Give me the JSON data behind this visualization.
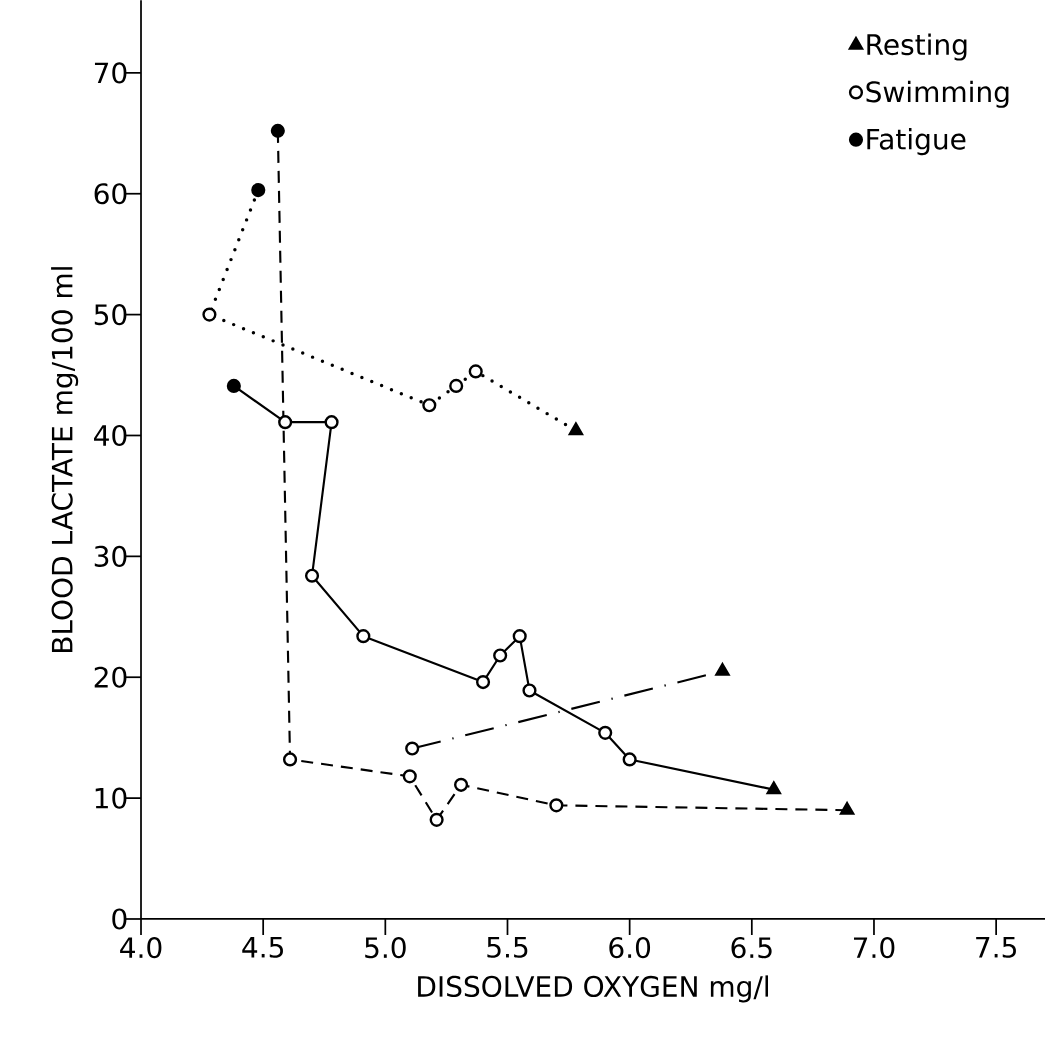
{
  "chart_data": {
    "type": "line",
    "xlabel": "DISSOLVED  OXYGEN   mg/l",
    "ylabel": "BLOOD  LACTATE   mg/100 ml",
    "xlim": [
      4.0,
      7.7
    ],
    "ylim": [
      0,
      76
    ],
    "xticks": [
      {
        "value": 4.0,
        "label": "4.0"
      },
      {
        "value": 4.5,
        "label": "4.5"
      },
      {
        "value": 5.0,
        "label": "5.0"
      },
      {
        "value": 5.5,
        "label": "5.5"
      },
      {
        "value": 6.0,
        "label": "6.0"
      },
      {
        "value": 6.5,
        "label": "6.5"
      },
      {
        "value": 7.0,
        "label": "7.0"
      },
      {
        "value": 7.5,
        "label": "7.5"
      }
    ],
    "yticks": [
      0,
      10,
      20,
      30,
      40,
      50,
      60,
      70
    ],
    "grid": false,
    "legend": "top right",
    "series": [
      {
        "line_style": "dotted",
        "marker": "none",
        "color": "#000000",
        "x": [
          4.48,
          4.28,
          5.18,
          5.29,
          5.37,
          5.78
        ],
        "values": [
          60.3,
          50.0,
          42.5,
          44.1,
          45.3,
          40.4
        ]
      },
      {
        "line_style": "solid",
        "marker": "none",
        "color": "#000000",
        "x": [
          4.38,
          4.59,
          4.78,
          4.7,
          4.91,
          5.4,
          5.47,
          5.55,
          5.59,
          5.9,
          6.0,
          6.59
        ],
        "values": [
          44.1,
          41.1,
          41.1,
          28.4,
          23.4,
          19.6,
          21.8,
          23.4,
          18.9,
          15.4,
          13.2,
          10.7
        ]
      },
      {
        "line_style": "dashdot",
        "marker": "none",
        "color": "#000000",
        "x": [
          5.11,
          6.38
        ],
        "values": [
          14.1,
          20.5
        ]
      },
      {
        "line_style": "dashed",
        "marker": "none",
        "color": "#000000",
        "x": [
          4.56,
          4.61,
          5.1,
          5.21,
          5.31,
          5.7,
          6.89
        ],
        "values": [
          65.2,
          13.2,
          11.8,
          8.2,
          11.1,
          9.4,
          9.0
        ]
      },
      {
        "type": "scatter",
        "name": "Resting",
        "marker": "triangle",
        "color": "#000000",
        "x": [
          5.78,
          6.38,
          6.59,
          6.89
        ],
        "values": [
          40.4,
          20.5,
          10.7,
          9.0
        ]
      },
      {
        "type": "scatter",
        "name": "Swimming",
        "marker": "circle",
        "color": "#ffffff",
        "x": [
          4.28,
          5.18,
          5.29,
          5.37,
          4.59,
          4.78,
          4.7,
          4.91,
          5.4,
          5.47,
          5.55,
          5.59,
          5.9,
          6.0,
          5.11,
          4.61,
          5.1,
          5.21,
          5.31,
          5.7
        ],
        "values": [
          50.0,
          42.5,
          44.1,
          45.3,
          41.1,
          41.1,
          28.4,
          23.4,
          19.6,
          21.8,
          23.4,
          18.9,
          15.4,
          13.2,
          14.1,
          13.2,
          11.8,
          8.2,
          11.1,
          9.4
        ]
      },
      {
        "type": "scatter",
        "name": "Fatigue",
        "marker": "circle",
        "color": "#000000",
        "x": [
          4.56,
          4.48,
          4.38
        ],
        "values": [
          65.2,
          60.3,
          44.1
        ]
      }
    ]
  }
}
